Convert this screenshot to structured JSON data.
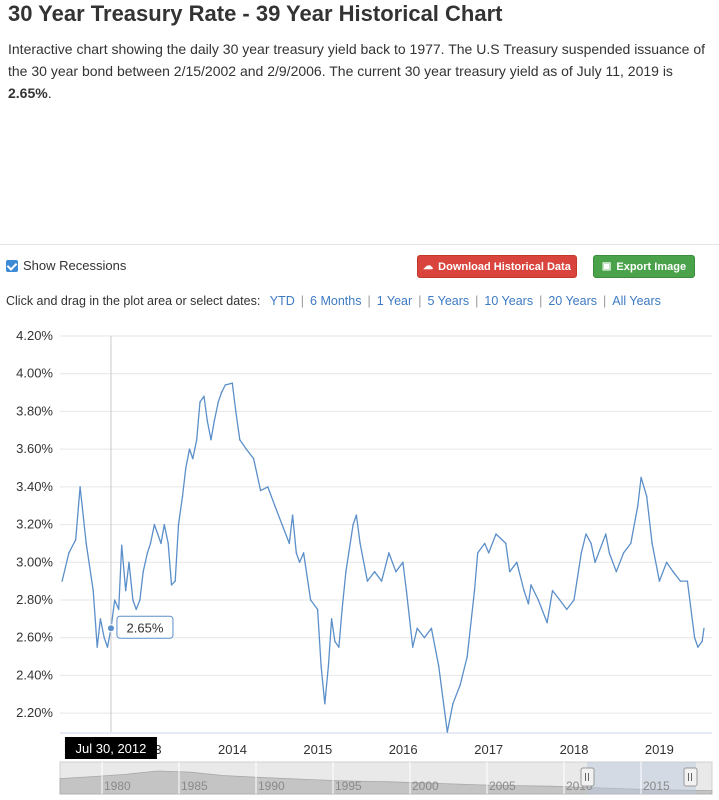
{
  "page": {
    "title": "30 Year Treasury Rate - 39 Year Historical Chart",
    "desc_main": "Interactive chart showing the daily 30 year treasury yield back to 1977. The U.S Treasury suspended issuance of the 30 year bond between 2/15/2002 and 2/9/2006. The current 30 year treasury yield as of July 11, 2019 is ",
    "desc_value": "2.65%",
    "desc_end": "."
  },
  "toolbar": {
    "show_recessions": "Show Recessions",
    "show_recessions_checked": true,
    "download_label": "Download Historical Data",
    "export_label": "Export Image",
    "download_color": "#d9453d",
    "export_color": "#4aa34a",
    "range_prompt": "Click and drag in the plot area or select dates:",
    "ranges": [
      "YTD",
      "6 Months",
      "1 Year",
      "5 Years",
      "10 Years",
      "20 Years",
      "All Years"
    ]
  },
  "chart_data": {
    "type": "line",
    "series": [
      {
        "color": "#5b8fc9",
        "x": [
          "2012-01-03",
          "2012-02-01",
          "2012-03-01",
          "2012-03-20",
          "2012-04-15",
          "2012-05-15",
          "2012-06-01",
          "2012-06-15",
          "2012-07-01",
          "2012-07-15",
          "2012-07-30",
          "2012-08-15",
          "2012-09-01",
          "2012-09-14",
          "2012-10-01",
          "2012-10-15",
          "2012-11-01",
          "2012-11-15",
          "2012-12-01",
          "2012-12-15",
          "2013-01-02",
          "2013-01-15",
          "2013-02-01",
          "2013-02-15",
          "2013-03-01",
          "2013-03-15",
          "2013-04-01",
          "2013-04-15",
          "2013-05-01",
          "2013-05-15",
          "2013-06-01",
          "2013-06-15",
          "2013-07-01",
          "2013-07-15",
          "2013-08-01",
          "2013-08-15",
          "2013-09-01",
          "2013-09-15",
          "2013-10-01",
          "2013-10-15",
          "2013-11-01",
          "2013-11-15",
          "2013-12-01",
          "2013-12-31",
          "2014-01-15",
          "2014-02-01",
          "2014-03-01",
          "2014-04-01",
          "2014-05-01",
          "2014-06-01",
          "2014-07-01",
          "2014-08-01",
          "2014-09-01",
          "2014-09-15",
          "2014-10-01",
          "2014-10-15",
          "2014-11-01",
          "2014-12-01",
          "2014-12-31",
          "2015-01-15",
          "2015-01-31",
          "2015-02-15",
          "2015-03-01",
          "2015-03-15",
          "2015-04-01",
          "2015-04-15",
          "2015-05-01",
          "2015-06-01",
          "2015-06-15",
          "2015-07-01",
          "2015-08-01",
          "2015-09-01",
          "2015-10-01",
          "2015-11-01",
          "2015-12-01",
          "2015-12-31",
          "2016-01-15",
          "2016-02-11",
          "2016-03-01",
          "2016-04-01",
          "2016-05-01",
          "2016-06-01",
          "2016-07-08",
          "2016-08-01",
          "2016-09-01",
          "2016-10-01",
          "2016-11-01",
          "2016-11-15",
          "2016-12-15",
          "2017-01-01",
          "2017-02-01",
          "2017-03-15",
          "2017-04-01",
          "2017-05-01",
          "2017-06-01",
          "2017-06-20",
          "2017-07-01",
          "2017-08-01",
          "2017-09-08",
          "2017-10-01",
          "2017-11-01",
          "2017-12-01",
          "2018-01-01",
          "2018-02-01",
          "2018-02-21",
          "2018-03-15",
          "2018-04-01",
          "2018-05-17",
          "2018-06-01",
          "2018-07-01",
          "2018-08-01",
          "2018-09-01",
          "2018-10-01",
          "2018-10-15",
          "2018-11-08",
          "2018-12-01",
          "2019-01-01",
          "2019-02-01",
          "2019-03-01",
          "2019-04-01",
          "2019-05-01",
          "2019-06-01",
          "2019-06-15",
          "2019-07-03",
          "2019-07-11"
        ],
        "y": [
          2.9,
          3.05,
          3.12,
          3.4,
          3.1,
          2.85,
          2.55,
          2.7,
          2.6,
          2.55,
          2.65,
          2.8,
          2.75,
          3.09,
          2.85,
          3.0,
          2.8,
          2.75,
          2.8,
          2.95,
          3.05,
          3.1,
          3.2,
          3.15,
          3.1,
          3.2,
          3.1,
          2.88,
          2.9,
          3.2,
          3.35,
          3.5,
          3.6,
          3.55,
          3.65,
          3.85,
          3.88,
          3.75,
          3.65,
          3.75,
          3.85,
          3.9,
          3.94,
          3.95,
          3.8,
          3.65,
          3.6,
          3.55,
          3.38,
          3.4,
          3.3,
          3.2,
          3.1,
          3.25,
          3.05,
          3.0,
          3.05,
          2.8,
          2.75,
          2.45,
          2.25,
          2.45,
          2.7,
          2.58,
          2.55,
          2.75,
          2.95,
          3.2,
          3.25,
          3.1,
          2.9,
          2.95,
          2.9,
          3.05,
          2.95,
          3.0,
          2.85,
          2.55,
          2.65,
          2.6,
          2.65,
          2.45,
          2.1,
          2.25,
          2.35,
          2.5,
          2.85,
          3.05,
          3.1,
          3.05,
          3.15,
          3.1,
          2.95,
          3.0,
          2.85,
          2.78,
          2.88,
          2.8,
          2.68,
          2.85,
          2.8,
          2.75,
          2.8,
          3.05,
          3.15,
          3.1,
          3.0,
          3.15,
          3.05,
          2.95,
          3.05,
          3.1,
          3.3,
          3.45,
          3.35,
          3.1,
          2.9,
          3.0,
          2.95,
          2.9,
          2.9,
          2.6,
          2.55,
          2.58,
          2.65
        ]
      }
    ],
    "ylim": [
      2.1,
      4.2
    ],
    "y_ticks": [
      "4.20%",
      "4.00%",
      "3.80%",
      "3.60%",
      "3.40%",
      "3.20%",
      "3.00%",
      "2.80%",
      "2.60%",
      "2.40%",
      "2.20%"
    ],
    "x_ticks": [
      "2013",
      "2014",
      "2015",
      "2016",
      "2017",
      "2018",
      "2019"
    ],
    "grid": true,
    "crosshair_date": "Jul 30, 2012",
    "tooltip_value": "2.65%",
    "navigator_labels": [
      "1980",
      "1985",
      "1990",
      "1995",
      "2000",
      "2005",
      "2010",
      "2015"
    ]
  }
}
